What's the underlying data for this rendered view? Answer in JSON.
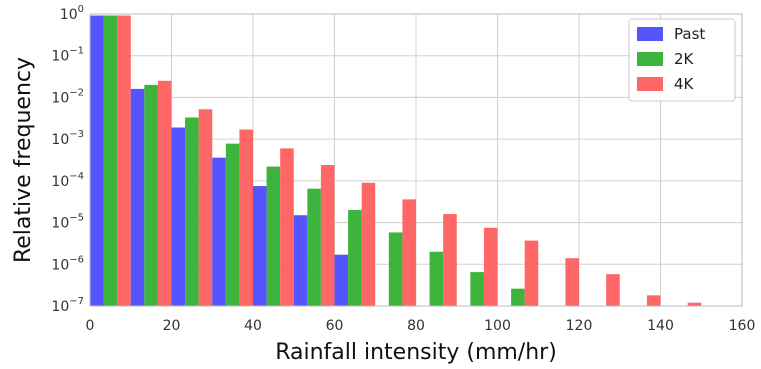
{
  "chart_data": {
    "type": "bar",
    "title": "",
    "xlabel": "Rainfall intensity (mm/hr)",
    "ylabel": "Relative frequency",
    "y_scale": "log",
    "xlim": [
      0,
      160
    ],
    "ylim": [
      1e-07,
      1
    ],
    "grid": true,
    "legend_position": "top-right",
    "x_ticks": [
      0,
      20,
      40,
      60,
      80,
      100,
      120,
      140,
      160
    ],
    "y_ticks": [
      {
        "value": 1,
        "base": "10",
        "exp": "0"
      },
      {
        "value": 0.1,
        "base": "10",
        "exp": "−1"
      },
      {
        "value": 0.01,
        "base": "10",
        "exp": "−2"
      },
      {
        "value": 0.001,
        "base": "10",
        "exp": "−3"
      },
      {
        "value": 0.0001,
        "base": "10",
        "exp": "−4"
      },
      {
        "value": 1e-05,
        "base": "10",
        "exp": "−5"
      },
      {
        "value": 1e-06,
        "base": "10",
        "exp": "−6"
      },
      {
        "value": 1e-07,
        "base": "10",
        "exp": "−7"
      }
    ],
    "bin_centers": [
      5,
      15,
      25,
      35,
      45,
      55,
      65,
      75,
      85,
      95,
      105,
      115,
      125,
      135,
      145
    ],
    "series": [
      {
        "name": "Past",
        "color": "#5555ff",
        "values": [
          0.92,
          0.016,
          0.0019,
          0.00036,
          7.5e-05,
          1.5e-05,
          1.7e-06,
          null,
          null,
          null,
          null,
          null,
          null,
          null,
          null
        ]
      },
      {
        "name": "2K",
        "color": "#3db53d",
        "values": [
          0.92,
          0.02,
          0.0033,
          0.00078,
          0.00022,
          6.5e-05,
          2e-05,
          5.8e-06,
          2e-06,
          6.5e-07,
          2.6e-07,
          null,
          null,
          null,
          null
        ]
      },
      {
        "name": "4K",
        "color": "#ff6666",
        "values": [
          0.92,
          0.025,
          0.0052,
          0.0017,
          0.0006,
          0.00024,
          9e-05,
          3.6e-05,
          1.6e-05,
          7.5e-06,
          3.7e-06,
          1.4e-06,
          5.8e-07,
          1.8e-07,
          1.2e-07
        ]
      }
    ]
  }
}
